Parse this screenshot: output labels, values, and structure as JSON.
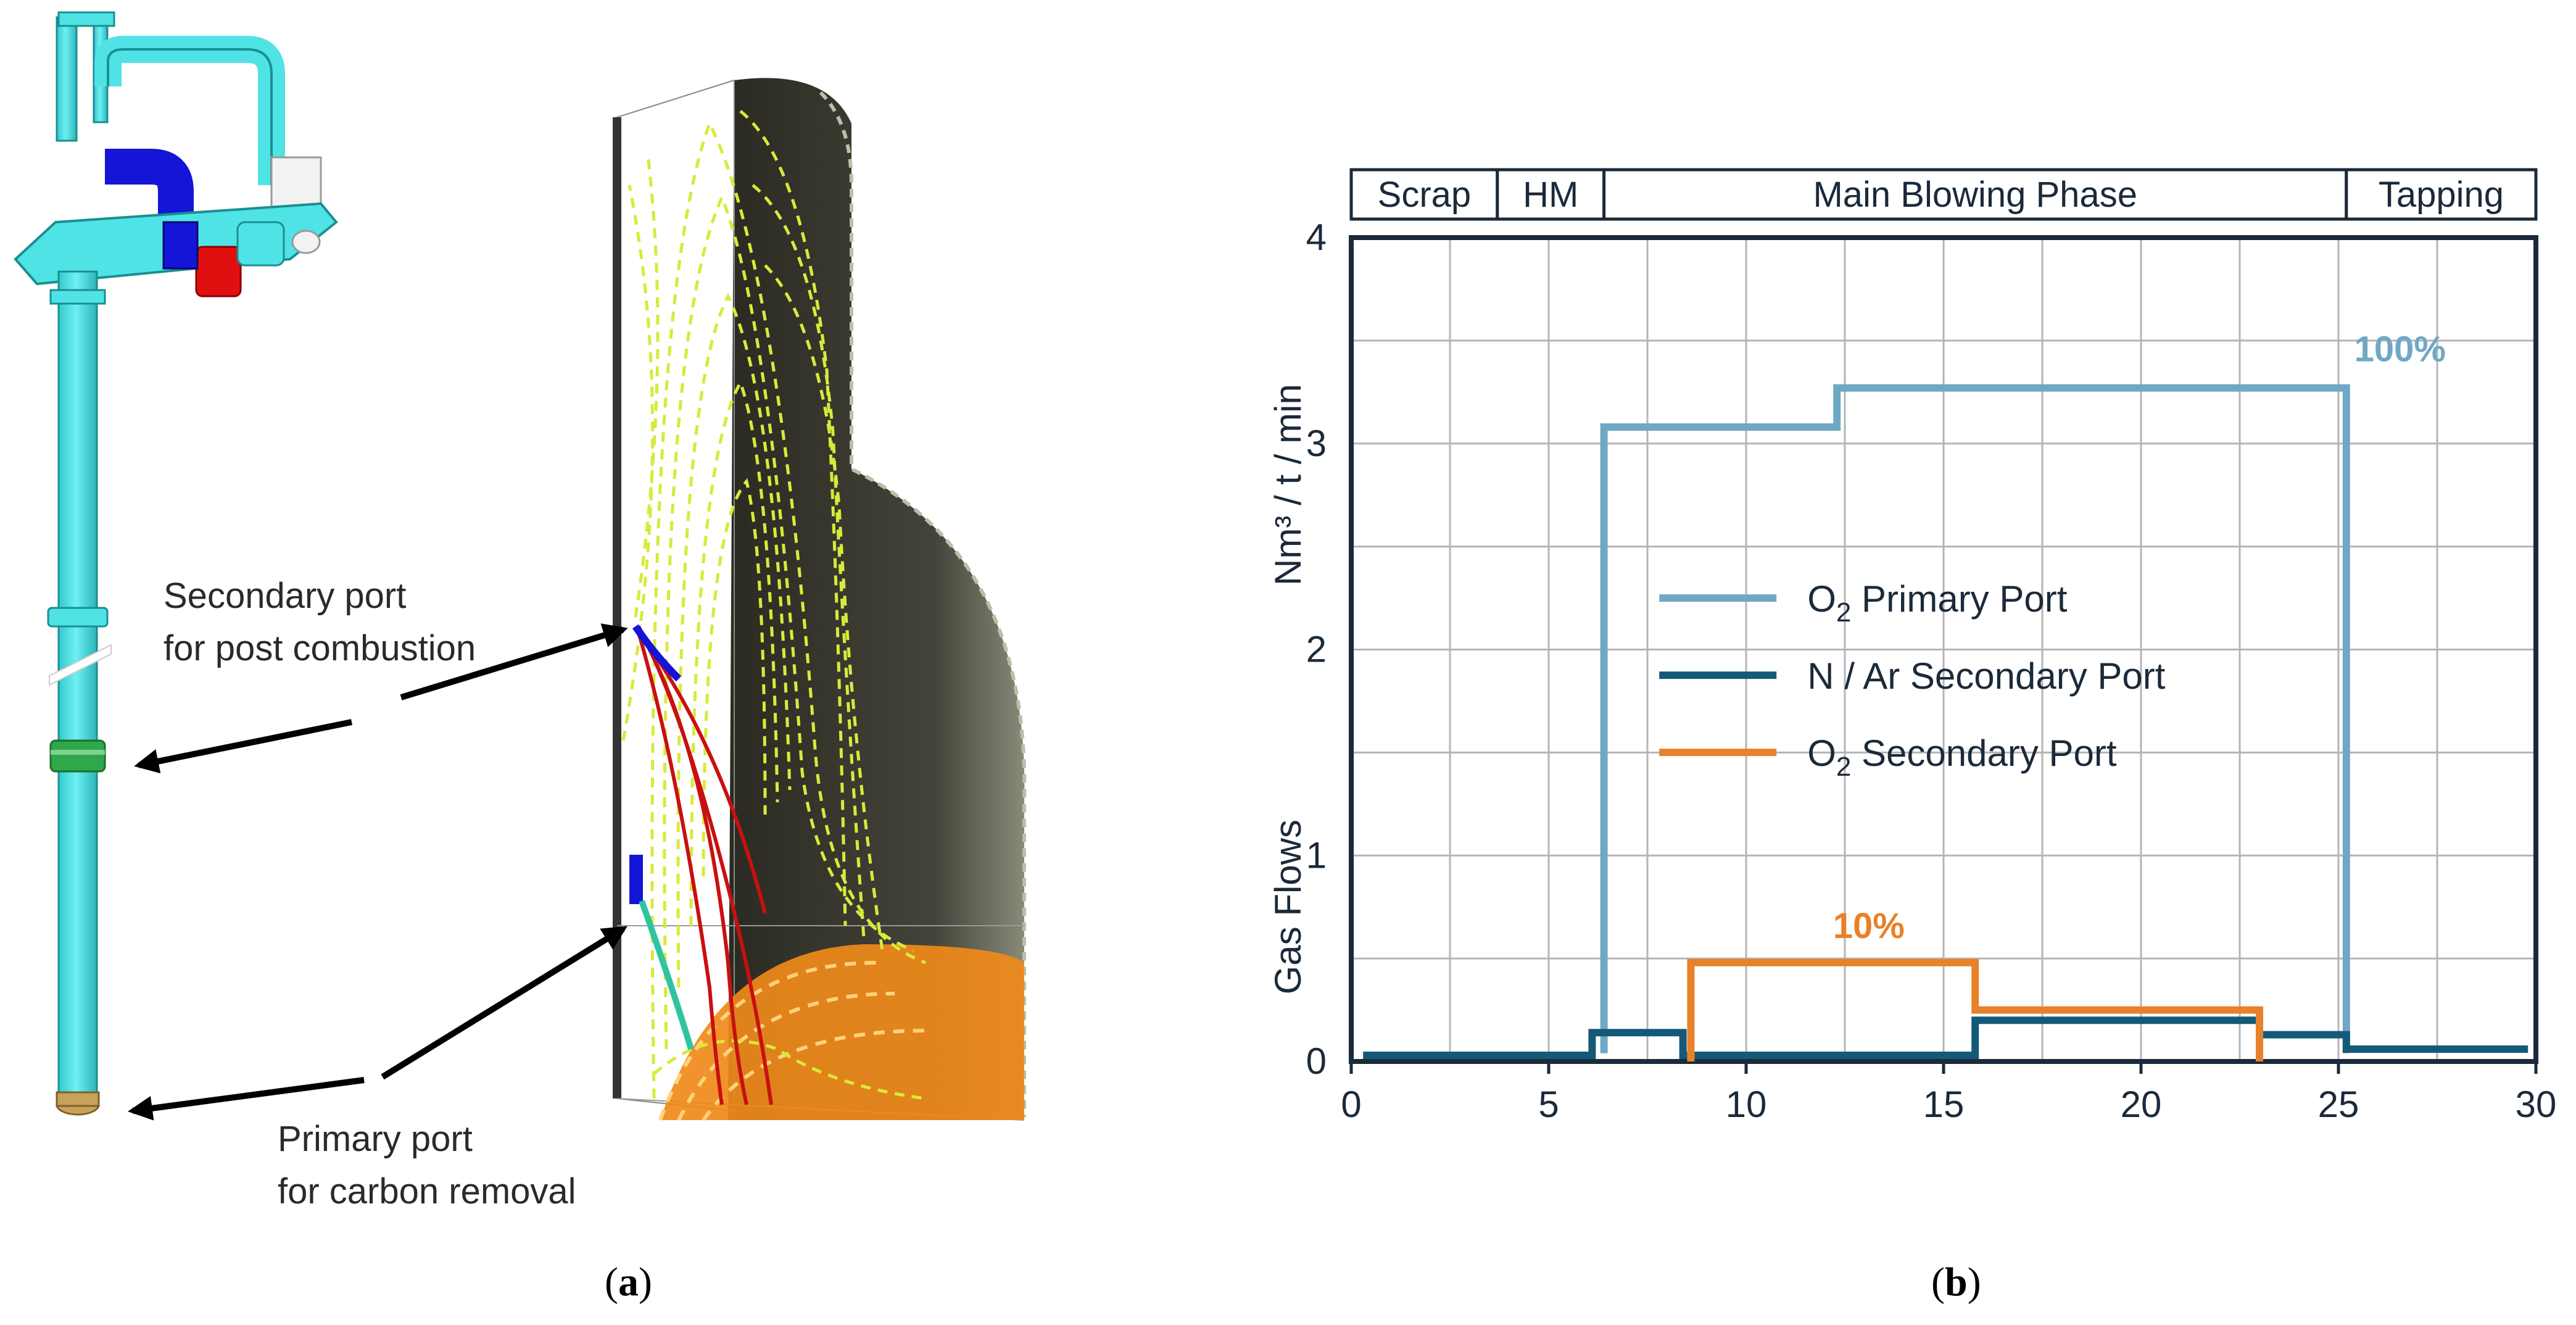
{
  "panel_a": {
    "labels": {
      "secondary_line1": "Secondary port",
      "secondary_line2": "for post combustion",
      "primary_line1": "Primary port",
      "primary_line2": "for carbon removal"
    },
    "caption_letter": "a",
    "colors": {
      "lance": "#4fe3e6",
      "blue_pipe": "#1515d8",
      "red_block": "#e01010",
      "green_ring": "#2ea84a",
      "tip": "#c9a25a",
      "vessel": "#3a3a30",
      "stream_yellow": "#d8ea3a",
      "stream_red": "#c81010",
      "stream_orange": "#f08a1a"
    }
  },
  "chart_data": {
    "type": "line",
    "step": true,
    "title": "",
    "xlabel": "",
    "ylabel": "Gas Flows",
    "ylabel_units": "Nm³ / t / min",
    "xlim": [
      0,
      30
    ],
    "ylim": [
      0,
      4
    ],
    "xticks": [
      0,
      5,
      10,
      15,
      20,
      25,
      30
    ],
    "yticks": [
      0,
      1,
      2,
      3,
      4
    ],
    "grid": true,
    "phases": [
      {
        "label": "Scrap",
        "start": 0,
        "end": 3.7
      },
      {
        "label": "HM",
        "start": 3.7,
        "end": 6.4
      },
      {
        "label": "Main Blowing Phase",
        "start": 6.4,
        "end": 25.2
      },
      {
        "label": "Tapping",
        "start": 25.2,
        "end": 30
      }
    ],
    "legend": {
      "position": "center",
      "entries": [
        {
          "sym": "O",
          "sub": "2",
          "rest": " Primary Port"
        },
        {
          "sym": "N / Ar Secondary Port",
          "sub": "",
          "rest": ""
        },
        {
          "sym": "O",
          "sub": "2",
          "rest": " Secondary Port"
        }
      ]
    },
    "series": [
      {
        "name": "O2 Primary Port",
        "color": "#6fa8c4",
        "points": [
          [
            6.4,
            0.04
          ],
          [
            6.4,
            3.08
          ],
          [
            12.3,
            3.08
          ],
          [
            12.3,
            3.27
          ],
          [
            25.2,
            3.27
          ],
          [
            25.2,
            0.04
          ]
        ]
      },
      {
        "name": "N / Ar Secondary Port",
        "color": "#145a78",
        "points": [
          [
            0.3,
            0.03
          ],
          [
            6.1,
            0.03
          ],
          [
            6.1,
            0.14
          ],
          [
            8.4,
            0.14
          ],
          [
            8.4,
            0.03
          ],
          [
            15.8,
            0.03
          ],
          [
            15.8,
            0.2
          ],
          [
            23.0,
            0.2
          ],
          [
            23.0,
            0.13
          ],
          [
            25.2,
            0.13
          ],
          [
            25.2,
            0.06
          ],
          [
            29.8,
            0.06
          ]
        ]
      },
      {
        "name": "O2 Secondary Port",
        "color": "#e8822a",
        "points": [
          [
            8.6,
            0.0
          ],
          [
            8.6,
            0.48
          ],
          [
            15.8,
            0.48
          ],
          [
            15.8,
            0.25
          ],
          [
            23.0,
            0.25
          ],
          [
            23.0,
            0.0
          ]
        ]
      }
    ],
    "annotations": [
      {
        "text": "100%",
        "x": 25.4,
        "y": 3.4,
        "color": "#6fa8c4"
      },
      {
        "text": "10%",
        "x": 12.2,
        "y": 0.6,
        "color": "#e8822a"
      }
    ],
    "caption_letter": "b"
  }
}
